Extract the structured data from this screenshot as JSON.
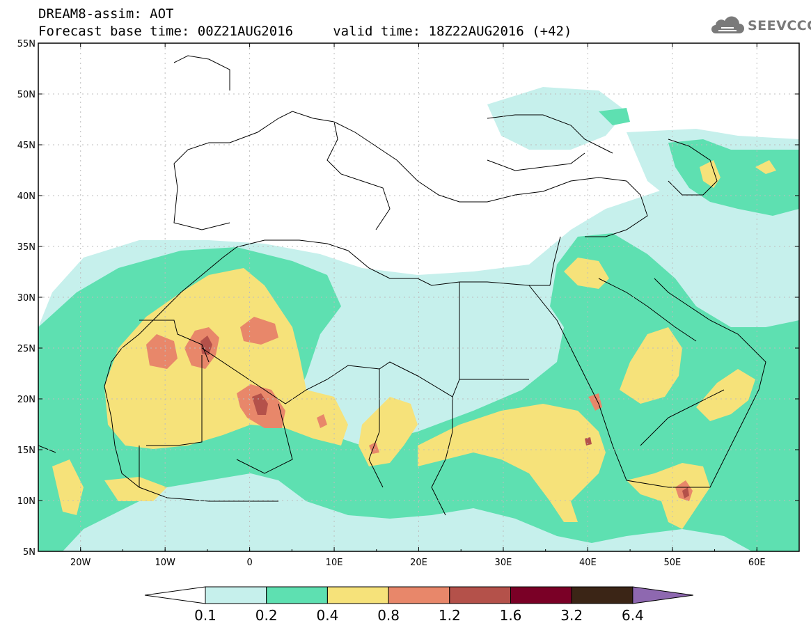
{
  "header": {
    "line1": "DREAM8-assim: AOT",
    "line2": "Forecast base time: 00Z21AUG2016     valid time: 18Z22AUG2016 (+42)",
    "brand": "SEEVCCC"
  },
  "map": {
    "lon_range": [
      -25,
      65
    ],
    "lat_range": [
      5,
      55
    ],
    "lat_labels": [
      "55N",
      "50N",
      "45N",
      "40N",
      "35N",
      "30N",
      "25N",
      "20N",
      "15N",
      "10N",
      "5N"
    ],
    "lon_labels": [
      "20W",
      "10W",
      "0",
      "10E",
      "20E",
      "30E",
      "40E",
      "50E",
      "60E"
    ],
    "variable": "AOT"
  },
  "colorbar": {
    "levels": [
      "0.1",
      "0.2",
      "0.4",
      "0.8",
      "1.2",
      "1.6",
      "3.2",
      "6.4"
    ],
    "colors": [
      "#ffffff",
      "#c6f0ec",
      "#5ee0b1",
      "#f6e27a",
      "#e8876a",
      "#b4514a",
      "#7a0026",
      "#3b2516",
      "#8e68b0"
    ]
  }
}
